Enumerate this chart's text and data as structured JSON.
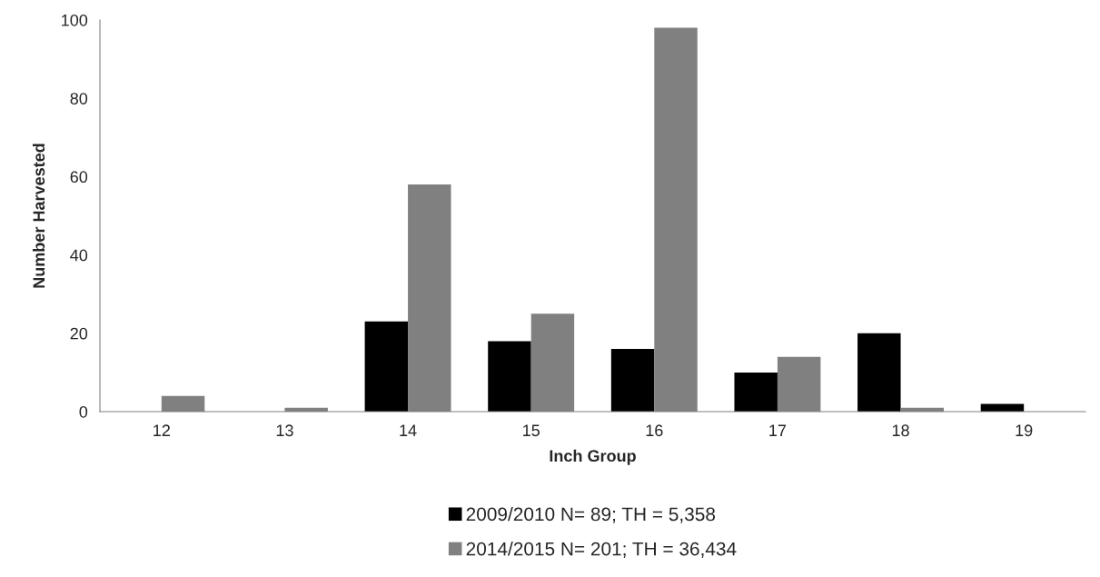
{
  "chart_data": {
    "type": "bar",
    "xlabel": "Inch Group",
    "ylabel": "Number Harvested",
    "categories": [
      "12",
      "13",
      "14",
      "15",
      "16",
      "17",
      "18",
      "19"
    ],
    "series": [
      {
        "name": "2009/2010 N= 89; TH = 5,358",
        "color": "#000000",
        "values": [
          0,
          0,
          23,
          18,
          16,
          10,
          20,
          2
        ]
      },
      {
        "name": "2014/2015 N= 201; TH = 36,434",
        "color": "#808080",
        "values": [
          4,
          1,
          58,
          25,
          98,
          14,
          1,
          0
        ]
      }
    ],
    "ylim": [
      0,
      100
    ],
    "yticks": [
      0,
      20,
      40,
      60,
      80,
      100
    ],
    "grid": false,
    "legend": "bottom"
  }
}
